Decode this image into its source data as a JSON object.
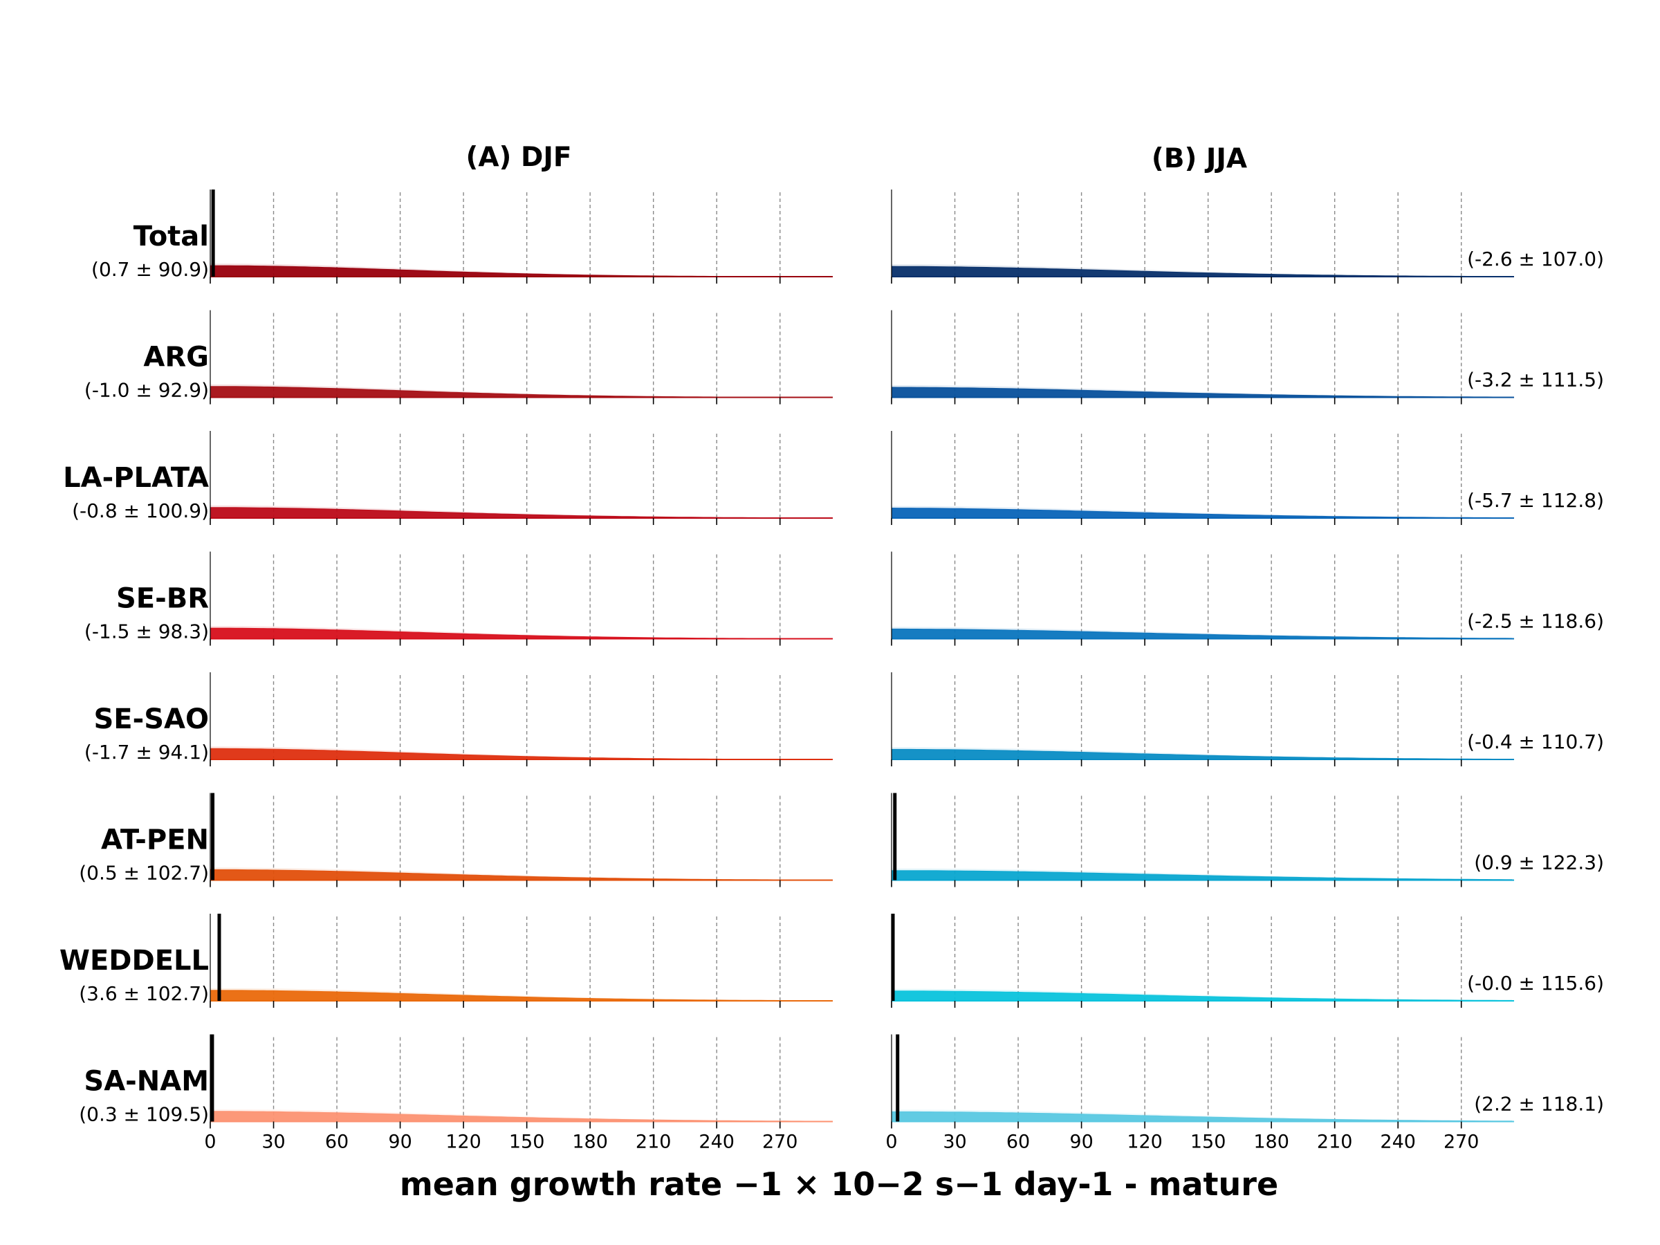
{
  "chart_data": {
    "type": "area",
    "xlabel": "mean growth rate  −1 × 10−2 s−1 day-1 - mature",
    "x_ticks": [
      0,
      30,
      60,
      90,
      120,
      150,
      180,
      210,
      240,
      270
    ],
    "xlim": [
      0,
      295
    ],
    "grid": "vertical dashed",
    "panels": [
      {
        "title": "(A) DJF",
        "rows": [
          {
            "name": "Total",
            "label": "(0.7 ± 90.9)",
            "mean": 0.7,
            "std": 90.9,
            "color": "#99000d"
          },
          {
            "name": "ARG",
            "label": "(-1.0 ± 92.9)",
            "mean": -1.0,
            "std": 92.9,
            "color": "#a50f15"
          },
          {
            "name": "LA-PLATA",
            "label": "(-0.8 ± 100.9)",
            "mean": -0.8,
            "std": 100.9,
            "color": "#bc0b19"
          },
          {
            "name": "SE-BR",
            "label": "(-1.5 ± 98.3)",
            "mean": -1.5,
            "std": 98.3,
            "color": "#d7101c"
          },
          {
            "name": "SE-SAO",
            "label": "(-1.7 ± 94.1)",
            "mean": -1.7,
            "std": 94.1,
            "color": "#de3010"
          },
          {
            "name": "AT-PEN",
            "label": "(0.5 ± 102.7)",
            "mean": 0.5,
            "std": 102.7,
            "color": "#e2500c"
          },
          {
            "name": "WEDDELL",
            "label": "(3.6 ± 102.7)",
            "mean": 3.6,
            "std": 102.7,
            "color": "#ea6a0c"
          },
          {
            "name": "SA-NAM",
            "label": "(0.3 ± 109.5)",
            "mean": 0.3,
            "std": 109.5,
            "color": "#fc9272"
          }
        ]
      },
      {
        "title": "(B) JJA",
        "rows": [
          {
            "name": "",
            "label": "(-2.6 ± 107.0)",
            "mean": -2.6,
            "std": 107.0,
            "color": "#08306b"
          },
          {
            "name": "",
            "label": "(-3.2 ± 111.5)",
            "mean": -3.2,
            "std": 111.5,
            "color": "#08519c"
          },
          {
            "name": "",
            "label": "(-5.7 ± 112.8)",
            "mean": -5.7,
            "std": 112.8,
            "color": "#0a65b8"
          },
          {
            "name": "",
            "label": "(-2.5 ± 118.6)",
            "mean": -2.5,
            "std": 118.6,
            "color": "#0b75be"
          },
          {
            "name": "",
            "label": "(-0.4 ± 110.7)",
            "mean": -0.4,
            "std": 110.7,
            "color": "#0a8cc4"
          },
          {
            "name": "",
            "label": "(0.9 ± 122.3)",
            "mean": 0.9,
            "std": 122.3,
            "color": "#0aa6d0"
          },
          {
            "name": "",
            "label": "(-0.0 ± 115.6)",
            "mean": -0.0,
            "std": 115.6,
            "color": "#0bc3dc"
          },
          {
            "name": "",
            "label": "(2.2 ± 118.1)",
            "mean": 2.2,
            "std": 118.1,
            "color": "#5ac8e2"
          }
        ]
      }
    ]
  }
}
